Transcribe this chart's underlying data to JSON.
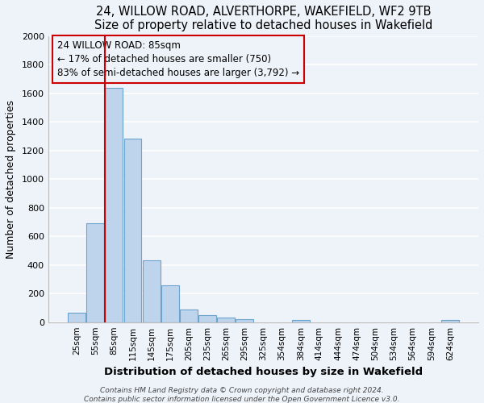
{
  "title1": "24, WILLOW ROAD, ALVERTHORPE, WAKEFIELD, WF2 9TB",
  "title2": "Size of property relative to detached houses in Wakefield",
  "xlabel": "Distribution of detached houses by size in Wakefield",
  "ylabel": "Number of detached properties",
  "bin_labels": [
    "25sqm",
    "55sqm",
    "85sqm",
    "115sqm",
    "145sqm",
    "175sqm",
    "205sqm",
    "235sqm",
    "265sqm",
    "295sqm",
    "325sqm",
    "354sqm",
    "384sqm",
    "414sqm",
    "444sqm",
    "474sqm",
    "504sqm",
    "534sqm",
    "564sqm",
    "594sqm",
    "624sqm"
  ],
  "bar_heights": [
    65,
    690,
    1640,
    1285,
    435,
    255,
    90,
    50,
    30,
    20,
    0,
    0,
    15,
    0,
    0,
    0,
    0,
    0,
    0,
    0,
    15
  ],
  "bar_color": "#bed4ec",
  "bar_edge_color": "#6ba3cd",
  "vline_color": "#cc0000",
  "annotation_text": "24 WILLOW ROAD: 85sqm\n← 17% of detached houses are smaller (750)\n83% of semi-detached houses are larger (3,792) →",
  "ylim": [
    0,
    2000
  ],
  "yticks": [
    0,
    200,
    400,
    600,
    800,
    1000,
    1200,
    1400,
    1600,
    1800,
    2000
  ],
  "footer1": "Contains HM Land Registry data © Crown copyright and database right 2024.",
  "footer2": "Contains public sector information licensed under the Open Government Licence v3.0.",
  "bg_color": "#eef2f9",
  "grid_color": "#ffffff"
}
